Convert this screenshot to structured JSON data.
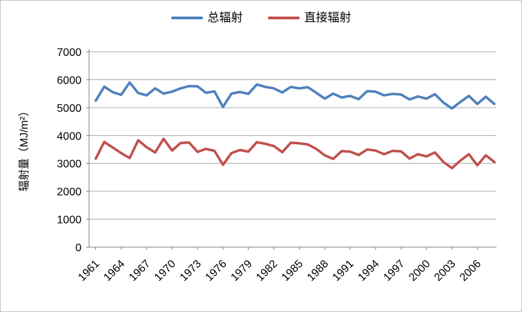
{
  "chart_data": {
    "type": "line",
    "title": "",
    "xlabel": "",
    "ylabel": "辐射量（MJ/m²）",
    "ylim": [
      0,
      7000
    ],
    "y_tick_step": 1000,
    "grid": true,
    "legend_position": "top",
    "x": [
      1961,
      1962,
      1963,
      1964,
      1965,
      1966,
      1967,
      1968,
      1969,
      1970,
      1971,
      1972,
      1973,
      1974,
      1975,
      1976,
      1977,
      1978,
      1979,
      1980,
      1981,
      1982,
      1983,
      1984,
      1985,
      1986,
      1987,
      1988,
      1989,
      1990,
      1991,
      1992,
      1993,
      1994,
      1995,
      1996,
      1997,
      1998,
      1999,
      2000,
      2001,
      2002,
      2003,
      2004,
      2005,
      2006,
      2007,
      2008
    ],
    "x_tick_labels": [
      "1961",
      "1964",
      "1967",
      "1970",
      "1973",
      "1976",
      "1979",
      "1982",
      "1985",
      "1988",
      "1991",
      "1994",
      "1997",
      "2000",
      "2003",
      "2006"
    ],
    "series": [
      {
        "name": "总辐射",
        "color": "#4F81BD",
        "values": [
          5250,
          5750,
          5550,
          5460,
          5900,
          5520,
          5440,
          5690,
          5500,
          5570,
          5690,
          5770,
          5760,
          5530,
          5580,
          5020,
          5500,
          5560,
          5490,
          5830,
          5740,
          5690,
          5540,
          5740,
          5690,
          5730,
          5530,
          5320,
          5500,
          5360,
          5420,
          5300,
          5590,
          5570,
          5440,
          5490,
          5470,
          5290,
          5400,
          5320,
          5480,
          5180,
          4970,
          5200,
          5420,
          5130,
          5390,
          5130
        ]
      },
      {
        "name": "直接辐射",
        "color": "#C0504D",
        "values": [
          3170,
          3770,
          3570,
          3370,
          3190,
          3830,
          3580,
          3390,
          3880,
          3460,
          3730,
          3750,
          3410,
          3520,
          3450,
          2950,
          3370,
          3480,
          3420,
          3760,
          3700,
          3620,
          3400,
          3740,
          3720,
          3680,
          3520,
          3290,
          3160,
          3440,
          3420,
          3300,
          3500,
          3460,
          3330,
          3450,
          3430,
          3170,
          3330,
          3250,
          3390,
          3050,
          2830,
          3100,
          3330,
          2930,
          3290,
          3050
        ]
      }
    ],
    "axis_color": "#7f7f7f",
    "grid_color": "#a8a8a8"
  }
}
